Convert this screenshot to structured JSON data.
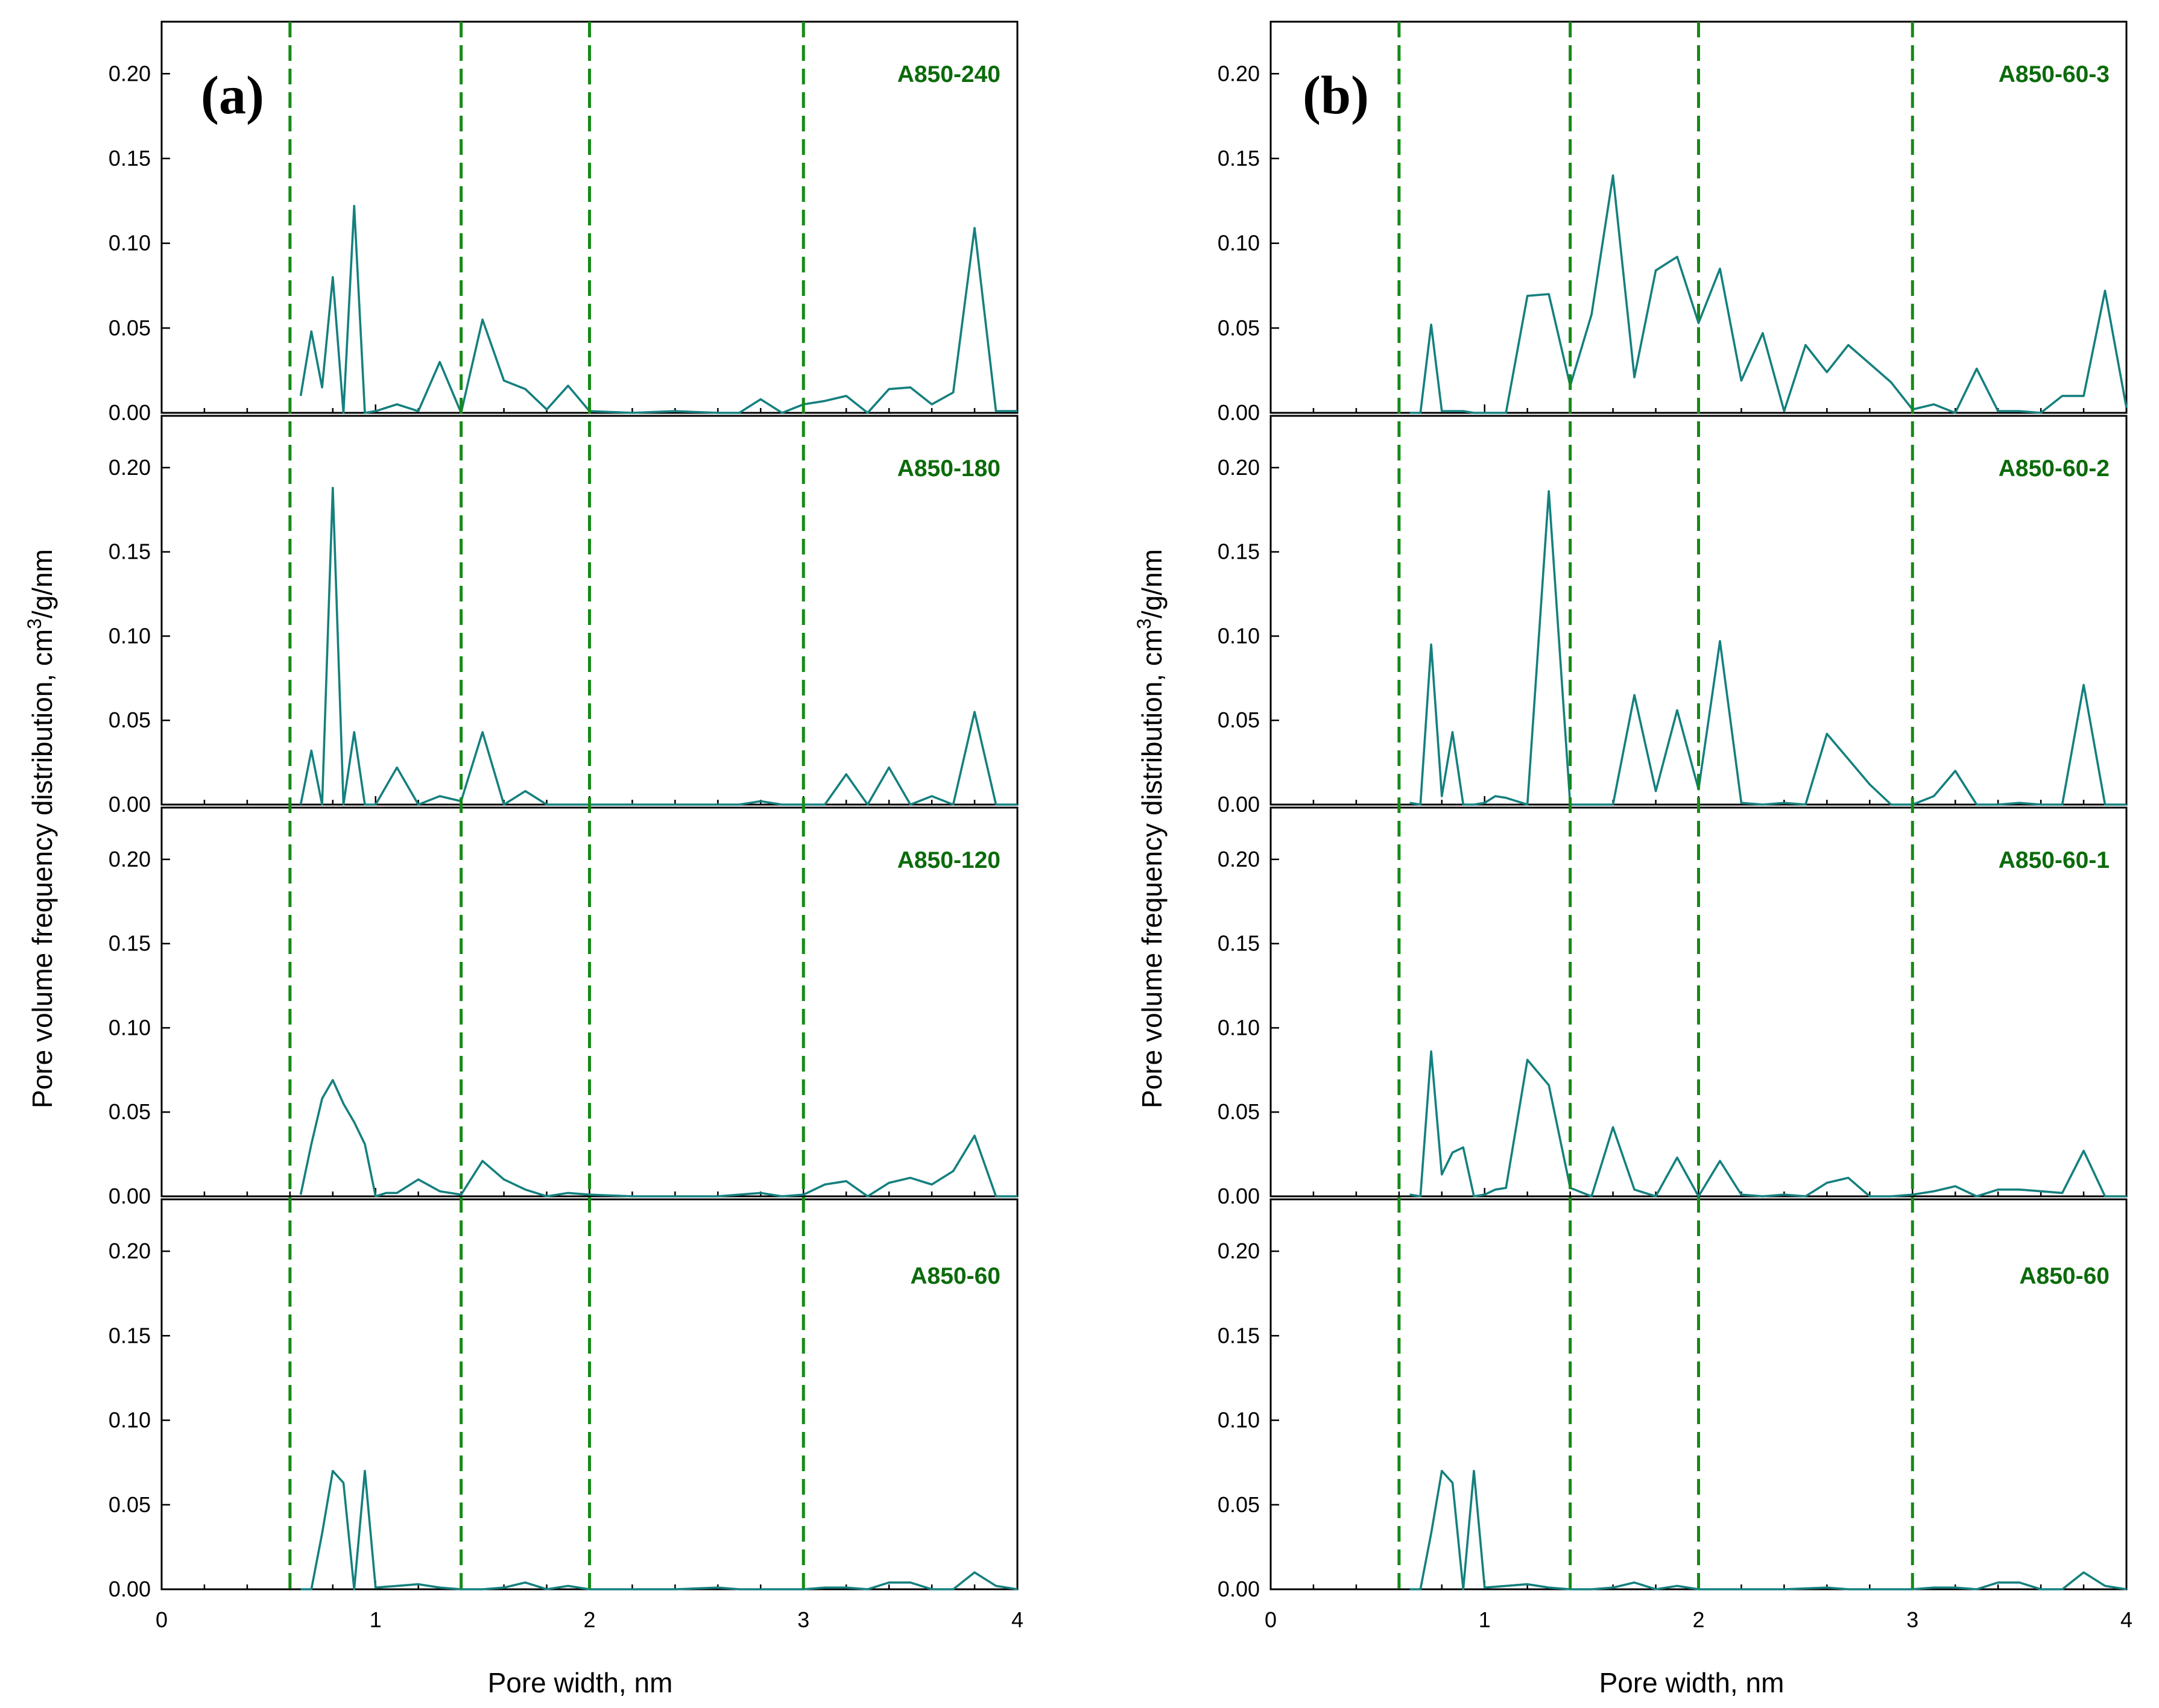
{
  "chart_data": {
    "type": "line",
    "x_axis_label": "Pore width, nm",
    "y_axis_label_prefix": "Pore volume frequency distribution, cm",
    "y_axis_label_superscript": "3",
    "y_axis_label_suffix": "/g/nm",
    "xlim": [
      0,
      4
    ],
    "ylim": [
      0,
      0.22
    ],
    "x_ticks": [
      "0",
      "1",
      "2",
      "3",
      "4"
    ],
    "y_ticks": [
      "0.00",
      "0.05",
      "0.10",
      "0.15",
      "0.20"
    ],
    "reference_lines_x": [
      0.6,
      1.4,
      2.0,
      3.0
    ],
    "line_color": "#14807e",
    "reference_line_color": "#168a16",
    "label_color": "#0b6b0b",
    "panels": [
      {
        "letter": "(a)",
        "subplots": [
          {
            "label": "A850-240",
            "x": [
              0.65,
              0.7,
              0.75,
              0.8,
              0.85,
              0.9,
              0.95,
              1.0,
              1.1,
              1.2,
              1.3,
              1.4,
              1.5,
              1.6,
              1.7,
              1.8,
              1.9,
              2.0,
              2.2,
              2.4,
              2.6,
              2.7,
              2.8,
              2.9,
              3.0,
              3.1,
              3.2,
              3.3,
              3.4,
              3.5,
              3.6,
              3.7,
              3.8,
              3.9,
              4.0
            ],
            "y": [
              0.01,
              0.048,
              0.015,
              0.08,
              0.0,
              0.122,
              0.0,
              0.001,
              0.005,
              0.001,
              0.03,
              0.0,
              0.055,
              0.019,
              0.014,
              0.002,
              0.016,
              0.001,
              0.0,
              0.001,
              0.0,
              0.0,
              0.008,
              0.0,
              0.005,
              0.007,
              0.01,
              0.0,
              0.014,
              0.015,
              0.005,
              0.012,
              0.109,
              0.001,
              0.001
            ]
          },
          {
            "label": "A850-180",
            "x": [
              0.65,
              0.7,
              0.75,
              0.8,
              0.85,
              0.9,
              0.95,
              1.0,
              1.1,
              1.2,
              1.3,
              1.4,
              1.5,
              1.6,
              1.7,
              1.8,
              1.9,
              2.0,
              2.2,
              2.4,
              2.6,
              2.7,
              2.8,
              2.9,
              3.0,
              3.1,
              3.2,
              3.3,
              3.4,
              3.5,
              3.6,
              3.7,
              3.8,
              3.9,
              4.0
            ],
            "y": [
              0.0,
              0.032,
              0.0,
              0.188,
              0.0,
              0.043,
              0.0,
              0.0,
              0.022,
              0.0,
              0.005,
              0.002,
              0.043,
              0.0,
              0.008,
              0.0,
              0.0,
              0.0,
              0.0,
              0.0,
              0.0,
              0.0,
              0.002,
              0.0,
              0.0,
              0.0,
              0.018,
              0.0,
              0.022,
              0.0,
              0.005,
              0.0,
              0.055,
              0.0,
              0.0
            ]
          },
          {
            "label": "A850-120",
            "x": [
              0.65,
              0.7,
              0.75,
              0.8,
              0.85,
              0.9,
              0.95,
              1.0,
              1.05,
              1.1,
              1.2,
              1.3,
              1.4,
              1.5,
              1.6,
              1.7,
              1.8,
              1.9,
              2.0,
              2.2,
              2.4,
              2.6,
              2.7,
              2.8,
              2.9,
              3.0,
              3.1,
              3.2,
              3.3,
              3.4,
              3.5,
              3.6,
              3.7,
              3.8,
              3.9,
              4.0
            ],
            "y": [
              0.001,
              0.031,
              0.058,
              0.069,
              0.055,
              0.044,
              0.031,
              0.0,
              0.002,
              0.002,
              0.01,
              0.003,
              0.001,
              0.021,
              0.01,
              0.004,
              0.0,
              0.002,
              0.001,
              0.0,
              0.0,
              0.0,
              0.001,
              0.002,
              0.0,
              0.001,
              0.007,
              0.009,
              0.0,
              0.008,
              0.011,
              0.007,
              0.015,
              0.036,
              0.0,
              0.0
            ]
          },
          {
            "label": "A850-60",
            "x": [
              0.65,
              0.7,
              0.75,
              0.8,
              0.85,
              0.9,
              0.95,
              1.0,
              1.1,
              1.2,
              1.3,
              1.4,
              1.5,
              1.6,
              1.7,
              1.8,
              1.9,
              2.0,
              2.2,
              2.4,
              2.6,
              2.7,
              2.8,
              2.9,
              3.0,
              3.1,
              3.2,
              3.3,
              3.4,
              3.5,
              3.6,
              3.7,
              3.8,
              3.9,
              4.0
            ],
            "y": [
              0.0,
              0.0,
              0.033,
              0.07,
              0.063,
              0.0,
              0.07,
              0.001,
              0.002,
              0.003,
              0.001,
              0.0,
              0.0,
              0.001,
              0.004,
              0.0,
              0.002,
              0.0,
              0.0,
              0.0,
              0.001,
              0.0,
              0.0,
              0.0,
              0.0,
              0.001,
              0.001,
              0.0,
              0.004,
              0.004,
              0.0,
              0.0,
              0.01,
              0.002,
              0.0
            ]
          }
        ]
      },
      {
        "letter": "(b)",
        "subplots": [
          {
            "label": "A850-60-3",
            "x": [
              0.65,
              0.7,
              0.75,
              0.8,
              0.85,
              0.9,
              0.95,
              1.0,
              1.1,
              1.2,
              1.3,
              1.4,
              1.5,
              1.6,
              1.7,
              1.8,
              1.9,
              2.0,
              2.1,
              2.2,
              2.3,
              2.4,
              2.5,
              2.6,
              2.7,
              2.8,
              2.9,
              3.0,
              3.1,
              3.2,
              3.3,
              3.4,
              3.5,
              3.6,
              3.7,
              3.8,
              3.9,
              4.0
            ],
            "y": [
              0.0,
              0.0,
              0.052,
              0.001,
              0.001,
              0.001,
              0.0,
              0.0,
              0.0,
              0.069,
              0.07,
              0.016,
              0.058,
              0.14,
              0.021,
              0.084,
              0.092,
              0.053,
              0.085,
              0.019,
              0.047,
              0.001,
              0.04,
              0.024,
              0.04,
              0.029,
              0.018,
              0.002,
              0.005,
              0.0,
              0.026,
              0.001,
              0.001,
              0.0,
              0.01,
              0.01,
              0.072,
              0.003
            ]
          },
          {
            "label": "A850-60-2",
            "x": [
              0.65,
              0.7,
              0.75,
              0.8,
              0.85,
              0.9,
              0.95,
              1.0,
              1.05,
              1.1,
              1.2,
              1.3,
              1.4,
              1.5,
              1.6,
              1.7,
              1.8,
              1.9,
              2.0,
              2.1,
              2.2,
              2.3,
              2.4,
              2.5,
              2.6,
              2.7,
              2.8,
              2.9,
              3.0,
              3.1,
              3.2,
              3.3,
              3.4,
              3.5,
              3.6,
              3.7,
              3.8,
              3.9,
              4.0
            ],
            "y": [
              0.001,
              0.0,
              0.095,
              0.005,
              0.043,
              0.0,
              0.0,
              0.001,
              0.005,
              0.004,
              0.0,
              0.186,
              0.0,
              0.0,
              0.0,
              0.065,
              0.008,
              0.056,
              0.009,
              0.097,
              0.001,
              0.0,
              0.001,
              0.0,
              0.042,
              0.027,
              0.012,
              0.0,
              0.0,
              0.005,
              0.02,
              0.0,
              0.0,
              0.001,
              0.0,
              0.0,
              0.071,
              0.0,
              0.0
            ]
          },
          {
            "label": "A850-60-1",
            "x": [
              0.65,
              0.7,
              0.75,
              0.8,
              0.85,
              0.9,
              0.95,
              1.0,
              1.05,
              1.1,
              1.2,
              1.3,
              1.4,
              1.5,
              1.6,
              1.7,
              1.8,
              1.9,
              2.0,
              2.1,
              2.2,
              2.3,
              2.4,
              2.5,
              2.6,
              2.7,
              2.8,
              2.9,
              3.0,
              3.1,
              3.2,
              3.3,
              3.4,
              3.5,
              3.6,
              3.7,
              3.8,
              3.9,
              4.0
            ],
            "y": [
              0.001,
              0.0,
              0.086,
              0.013,
              0.026,
              0.029,
              0.0,
              0.001,
              0.004,
              0.005,
              0.081,
              0.066,
              0.005,
              0.0,
              0.041,
              0.004,
              0.0,
              0.023,
              0.0,
              0.021,
              0.001,
              0.0,
              0.001,
              0.0,
              0.008,
              0.011,
              0.0,
              0.0,
              0.001,
              0.003,
              0.006,
              0.0,
              0.004,
              0.004,
              0.003,
              0.002,
              0.027,
              0.0,
              0.0
            ]
          },
          {
            "label": "A850-60",
            "x": [
              0.65,
              0.7,
              0.75,
              0.8,
              0.85,
              0.9,
              0.95,
              1.0,
              1.1,
              1.2,
              1.3,
              1.4,
              1.5,
              1.6,
              1.7,
              1.8,
              1.9,
              2.0,
              2.2,
              2.4,
              2.6,
              2.7,
              2.8,
              2.9,
              3.0,
              3.1,
              3.2,
              3.3,
              3.4,
              3.5,
              3.6,
              3.7,
              3.8,
              3.9,
              4.0
            ],
            "y": [
              0.0,
              0.0,
              0.033,
              0.07,
              0.063,
              0.0,
              0.07,
              0.001,
              0.002,
              0.003,
              0.001,
              0.0,
              0.0,
              0.001,
              0.004,
              0.0,
              0.002,
              0.0,
              0.0,
              0.0,
              0.001,
              0.0,
              0.0,
              0.0,
              0.0,
              0.001,
              0.001,
              0.0,
              0.004,
              0.004,
              0.0,
              0.0,
              0.01,
              0.002,
              0.0
            ]
          }
        ]
      }
    ]
  }
}
